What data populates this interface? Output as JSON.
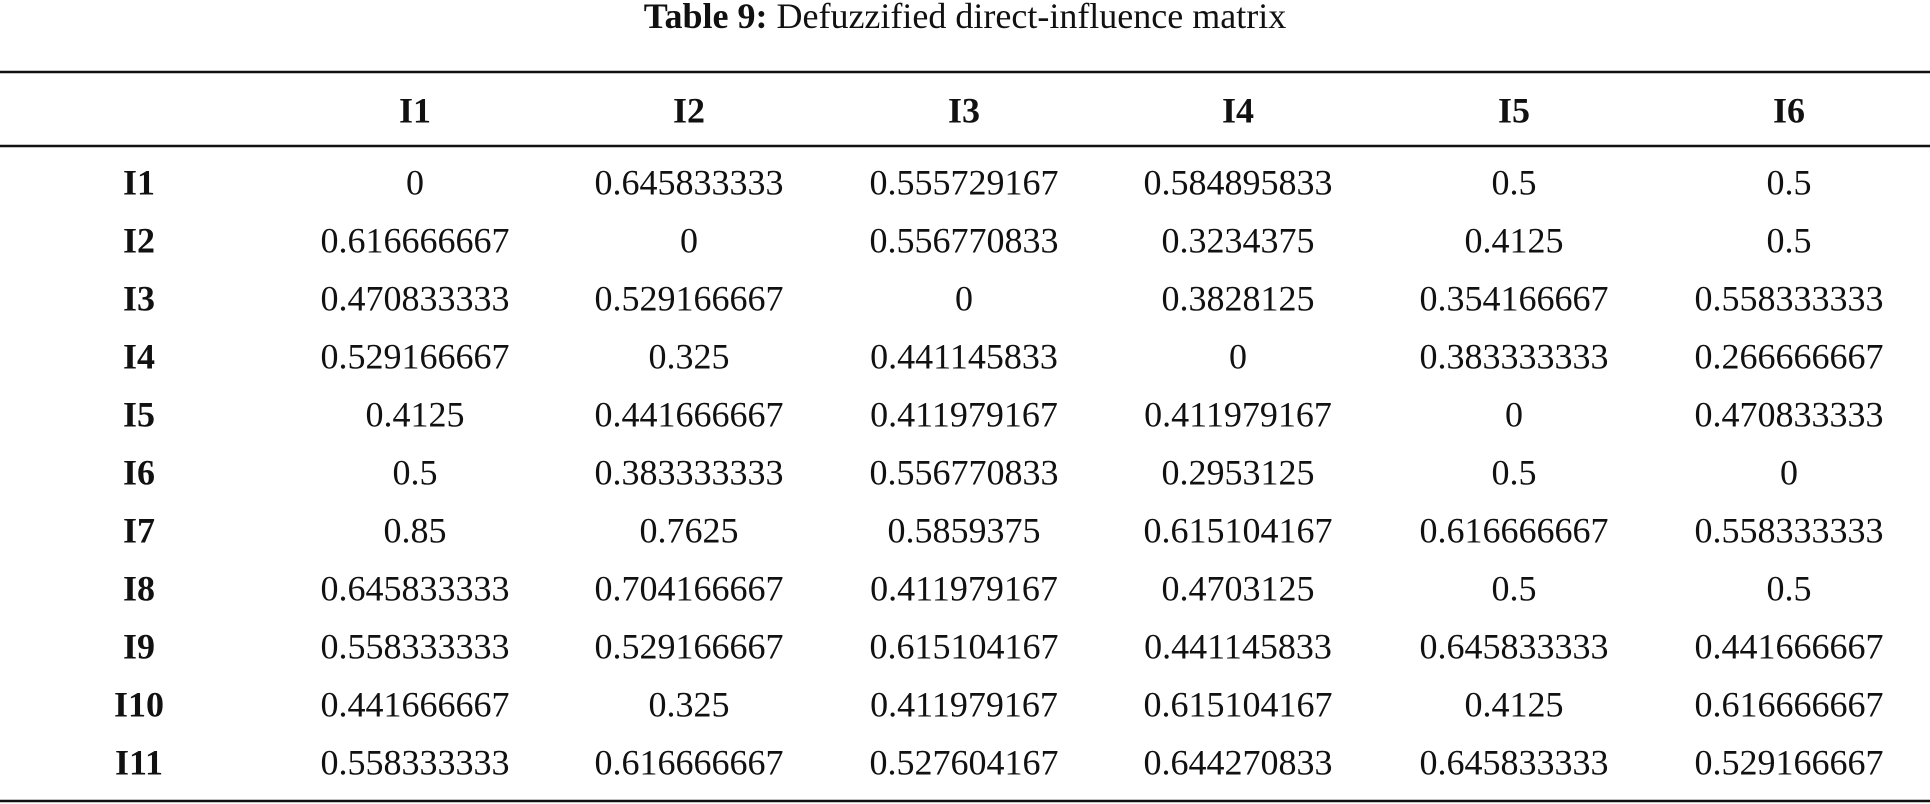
{
  "caption": {
    "label": "Table 9:",
    "text": "Defuzzified direct-influence matrix"
  },
  "table": {
    "columns": [
      "I1",
      "I2",
      "I3",
      "I4",
      "I5",
      "I6"
    ],
    "rows": [
      {
        "name": "I1",
        "cells": [
          0,
          0.645833333,
          0.555729167,
          0.584895833,
          0.5,
          0.5
        ]
      },
      {
        "name": "I2",
        "cells": [
          0.616666667,
          0,
          0.556770833,
          0.3234375,
          0.4125,
          0.5
        ]
      },
      {
        "name": "I3",
        "cells": [
          0.470833333,
          0.529166667,
          0,
          0.3828125,
          0.354166667,
          0.558333333
        ]
      },
      {
        "name": "I4",
        "cells": [
          0.529166667,
          0.325,
          0.441145833,
          0,
          0.383333333,
          0.266666667
        ]
      },
      {
        "name": "I5",
        "cells": [
          0.4125,
          0.441666667,
          0.411979167,
          0.411979167,
          0,
          0.470833333
        ]
      },
      {
        "name": "I6",
        "cells": [
          0.5,
          0.383333333,
          0.556770833,
          0.2953125,
          0.5,
          0
        ]
      },
      {
        "name": "I7",
        "cells": [
          0.85,
          0.7625,
          0.5859375,
          0.615104167,
          0.616666667,
          0.558333333
        ]
      },
      {
        "name": "I8",
        "cells": [
          0.645833333,
          0.704166667,
          0.411979167,
          0.4703125,
          0.5,
          0.5
        ]
      },
      {
        "name": "I9",
        "cells": [
          0.558333333,
          0.529166667,
          0.615104167,
          0.441145833,
          0.645833333,
          0.441666667
        ]
      },
      {
        "name": "I10",
        "cells": [
          0.441666667,
          0.325,
          0.411979167,
          0.615104167,
          0.4125,
          0.616666667
        ]
      },
      {
        "name": "I11",
        "cells": [
          0.558333333,
          0.616666667,
          0.527604167,
          0.644270833,
          0.645833333,
          0.529166667
        ]
      }
    ]
  }
}
